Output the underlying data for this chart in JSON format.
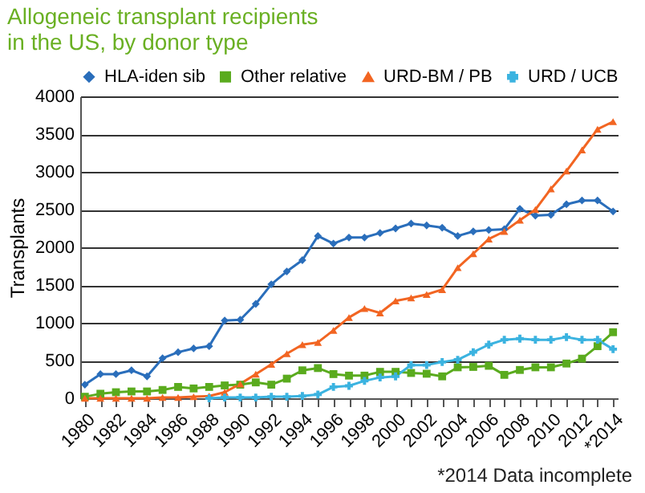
{
  "chart_data": {
    "type": "line",
    "title": "Allogeneic transplant recipients in the US, by donor type",
    "ylabel": "Transplants",
    "categories": [
      "1980",
      null,
      "1982",
      null,
      "1984",
      null,
      "1986",
      null,
      "1988",
      null,
      "1990",
      null,
      "1992",
      null,
      "1994",
      null,
      "1996",
      null,
      "1998",
      null,
      "2000",
      null,
      "2002",
      null,
      "2004",
      null,
      "2006",
      null,
      "2008",
      null,
      "2010",
      null,
      "2012",
      null,
      "*2014"
    ],
    "series": [
      {
        "name": "HLA-iden sib",
        "color": "#2a6ebb",
        "marker": "diamond",
        "values": [
          180,
          320,
          320,
          370,
          290,
          530,
          610,
          660,
          690,
          1030,
          1040,
          1250,
          1510,
          1680,
          1830,
          2150,
          2050,
          2130,
          2130,
          2190,
          2250,
          2315,
          2290,
          2260,
          2150,
          2210,
          2230,
          2240,
          2510,
          2420,
          2430,
          2570,
          2620,
          2620,
          2475
        ]
      },
      {
        "name": "Other relative",
        "color": "#5aab1e",
        "marker": "square",
        "values": [
          20,
          60,
          80,
          90,
          90,
          110,
          150,
          130,
          150,
          170,
          180,
          210,
          180,
          260,
          370,
          400,
          320,
          300,
          300,
          350,
          350,
          335,
          325,
          290,
          410,
          415,
          430,
          310,
          375,
          410,
          410,
          460,
          525,
          690,
          875
        ]
      },
      {
        "name": "URD-BM / PB",
        "color": "#f26522",
        "marker": "triangle",
        "values": [
          0,
          0,
          0,
          0,
          0,
          10,
          10,
          20,
          30,
          80,
          190,
          320,
          450,
          590,
          710,
          740,
          900,
          1070,
          1190,
          1130,
          1290,
          1330,
          1375,
          1440,
          1730,
          1915,
          2110,
          2210,
          2360,
          2500,
          2775,
          3010,
          3290,
          3565,
          3665
        ]
      },
      {
        "name": "URD / UCB",
        "color": "#3bb3e0",
        "marker": "cross",
        "values": [
          null,
          null,
          null,
          null,
          null,
          null,
          null,
          null,
          0,
          10,
          10,
          10,
          20,
          20,
          30,
          50,
          150,
          165,
          230,
          275,
          290,
          440,
          440,
          480,
          510,
          610,
          710,
          775,
          790,
          775,
          775,
          810,
          775,
          775,
          650
        ]
      }
    ],
    "ylim": [
      0,
      4000
    ],
    "yticks": [
      0,
      500,
      1000,
      1500,
      2000,
      2500,
      3000,
      3500,
      4000
    ],
    "grid": "y",
    "legend": "top",
    "annotations": [
      "*2014 Data incomplete"
    ]
  }
}
